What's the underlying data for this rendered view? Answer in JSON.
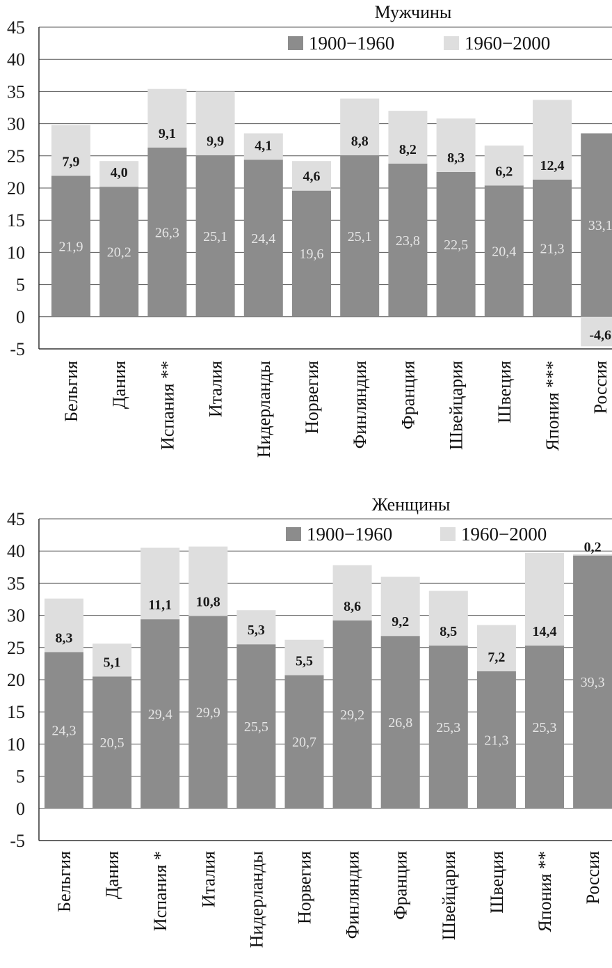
{
  "colors": {
    "series_1900_1960": "#8c8c8c",
    "series_1960_2000": "#dedede",
    "grid": "#555555",
    "axis": "#333333",
    "text": "#111111"
  },
  "chart_data": [
    {
      "type": "bar",
      "stacked": true,
      "title": "Мужчины",
      "ylim": [
        -5,
        45
      ],
      "yticks": [
        "45",
        "40",
        "35",
        "30",
        "25",
        "20",
        "15",
        "10",
        "5",
        "0",
        "-5"
      ],
      "grid": true,
      "legend": "top-right",
      "categories": [
        "Бельгия",
        "Дания",
        "Испания **",
        "Италия",
        "Нидерланды",
        "Норвегия",
        "Финляндия",
        "Франция",
        "Швейцария",
        "Швеция",
        "Япония ***",
        "Россия"
      ],
      "series": [
        {
          "name": "1900−1960",
          "values": [
            21.9,
            20.2,
            26.3,
            25.1,
            24.4,
            19.6,
            25.1,
            23.8,
            22.5,
            20.4,
            21.3,
            33.1
          ],
          "labels": [
            "21,9",
            "20,2",
            "26,3",
            "25,1",
            "24,4",
            "19,6",
            "25,1",
            "23,8",
            "22,5",
            "20,4",
            "21,3",
            "33,1"
          ]
        },
        {
          "name": "1960−2000",
          "values": [
            7.9,
            4.0,
            9.1,
            9.9,
            4.1,
            4.6,
            8.8,
            8.2,
            8.3,
            6.2,
            12.4,
            -4.6
          ],
          "labels": [
            "7,9",
            "4,0",
            "9,1",
            "9,9",
            "4,1",
            "4,6",
            "8,8",
            "8,2",
            "8,3",
            "6,2",
            "12,4",
            "-4,6"
          ]
        }
      ]
    },
    {
      "type": "bar",
      "stacked": true,
      "title": "Женщины",
      "ylim": [
        -5,
        45
      ],
      "yticks": [
        "45",
        "40",
        "35",
        "30",
        "25",
        "20",
        "15",
        "10",
        "5",
        "0",
        "-5"
      ],
      "grid": true,
      "legend": "top-right",
      "categories": [
        "Бельгия",
        "Дания",
        "Испания *",
        "Италия",
        "Нидерланды",
        "Норвегия",
        "Финляндия",
        "Франция",
        "Швейцария",
        "Швеция",
        "Япония **",
        "Россия"
      ],
      "series": [
        {
          "name": "1900−1960",
          "values": [
            24.3,
            20.5,
            29.4,
            29.9,
            25.5,
            20.7,
            29.2,
            26.8,
            25.3,
            21.3,
            25.3,
            39.3
          ],
          "labels": [
            "24,3",
            "20,5",
            "29,4",
            "29,9",
            "25,5",
            "20,7",
            "29,2",
            "26,8",
            "25,3",
            "21,3",
            "25,3",
            "39,3"
          ]
        },
        {
          "name": "1960−2000",
          "values": [
            8.3,
            5.1,
            11.1,
            10.8,
            5.3,
            5.5,
            8.6,
            9.2,
            8.5,
            7.2,
            14.4,
            0.2
          ],
          "labels": [
            "8,3",
            "5,1",
            "11,1",
            "10,8",
            "5,3",
            "5,5",
            "8,6",
            "9,2",
            "8,5",
            "7,2",
            "14,4",
            "0,2"
          ]
        }
      ]
    }
  ]
}
